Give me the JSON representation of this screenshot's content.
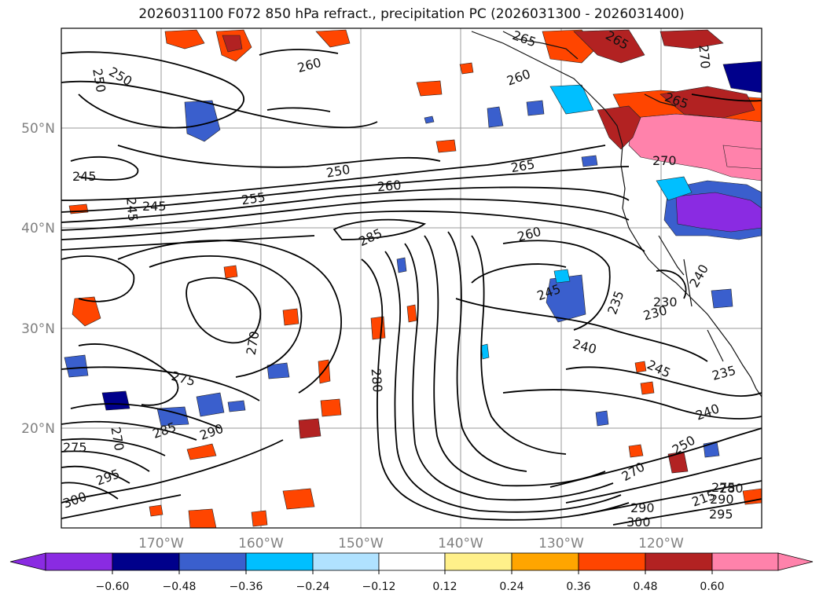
{
  "title": "2026031100 F072 850 hPa refract., precipitation PC (2026031300 - 2026031400)",
  "map": {
    "latitude_labels": [
      "50°N",
      "40°N",
      "30°N",
      "20°N"
    ],
    "longitude_labels": [
      "170°W",
      "160°W",
      "150°W",
      "140°W",
      "130°W",
      "120°W"
    ],
    "contour_labels": [
      "250",
      "250",
      "265",
      "265",
      "260",
      "260",
      "270",
      "265",
      "250",
      "245",
      "255",
      "260",
      "245",
      "245",
      "265",
      "260",
      "270",
      "285",
      "245",
      "235",
      "230",
      "240",
      "270",
      "280",
      "275",
      "245",
      "235",
      "290",
      "285",
      "270",
      "275",
      "295",
      "300",
      "240",
      "250",
      "215",
      "275",
      "280",
      "270",
      "290",
      "300",
      "290",
      "295",
      "230",
      "240"
    ]
  },
  "colorbar": {
    "tick_labels": [
      "−0.60",
      "−0.48",
      "−0.36",
      "−0.24",
      "−0.12",
      "0.12",
      "0.24",
      "0.36",
      "0.48",
      "0.60"
    ],
    "colors": [
      "#8a2be2",
      "#00008b",
      "#3a5fcd",
      "#00bfff",
      "#b0e2ff",
      "#ffffff",
      "#fff08a",
      "#ffa500",
      "#ff4500",
      "#b22222",
      "#ff82ab",
      "#ff82ab"
    ]
  }
}
